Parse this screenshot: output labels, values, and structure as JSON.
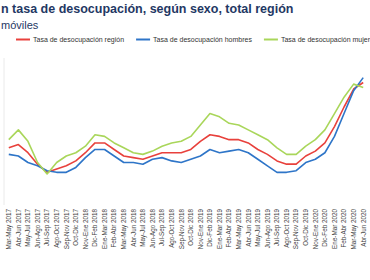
{
  "chart_data": {
    "type": "line",
    "title": "n tasa de desocupación, según sexo, total región",
    "subtitle": "móviles",
    "categories": [
      "Mar-May 2017",
      "Abr-Jun 2017",
      "May-Jul 2017",
      "Jun-Ago 2017",
      "Jul-Sep 2017",
      "Ago-Oct 2017",
      "Sep-Nov 2017",
      "Oct-Dic 2017",
      "Nov-Ene 2018",
      "Dic-Feb 2018",
      "Ene-Mar 2018",
      "Feb-Abr 2018",
      "Mar-May 2018",
      "Abr-Jun 2018",
      "May-Jul 2018",
      "Jun-Ago 2018",
      "Jul-Sep 2018",
      "Ago-Oct 2018",
      "Sep-Nov 2018",
      "Oct-Dic 2018",
      "Nov-Ene 2019",
      "Dic-Feb 2019",
      "Ene-Mar 2019",
      "Feb-Abr 2019",
      "Mar-May 2019",
      "Abr-Jun 2019",
      "May-Jul 2019",
      "Jun-Ago 2019",
      "Jul-Sep 2019",
      "Ago-Oct 2019",
      "Sep-Nov 2019",
      "Oct-Dic 2019",
      "Nov-Ene 2020",
      "Dic-Feb 2020",
      "Ene-Mar 2020",
      "Feb-Abr 2020",
      "Mar-May 2020",
      "Abr-Jun 2020"
    ],
    "series": [
      {
        "name": "Tasa de desocupación región",
        "color": "#e8413c",
        "values": [
          8.5,
          8.7,
          8.2,
          7.5,
          7.0,
          7.2,
          7.4,
          7.7,
          8.2,
          8.8,
          8.8,
          8.4,
          8.0,
          7.9,
          7.8,
          8.0,
          8.2,
          8.2,
          8.2,
          8.4,
          8.9,
          9.3,
          9.2,
          9.0,
          9.0,
          8.8,
          8.4,
          8.1,
          7.7,
          7.5,
          7.5,
          8.0,
          8.3,
          8.8,
          9.8,
          11.0,
          12.1,
          12.5
        ]
      },
      {
        "name": "Tasa de desocupación hombres",
        "color": "#2e75c8",
        "values": [
          8.1,
          8.0,
          7.6,
          7.4,
          7.1,
          7.0,
          7.0,
          7.3,
          7.9,
          8.4,
          8.4,
          8.0,
          7.6,
          7.6,
          7.5,
          7.8,
          7.9,
          7.7,
          7.6,
          7.8,
          8.0,
          8.4,
          8.2,
          8.3,
          8.4,
          8.2,
          7.8,
          7.4,
          7.0,
          7.0,
          7.1,
          7.6,
          7.8,
          8.2,
          9.2,
          10.6,
          12.0,
          12.8
        ]
      },
      {
        "name": "Tasa de desocupación mujeres",
        "color": "#a9d65a",
        "values": [
          9.0,
          9.6,
          8.9,
          7.6,
          6.9,
          7.6,
          8.0,
          8.2,
          8.6,
          9.3,
          9.2,
          8.8,
          8.5,
          8.2,
          8.1,
          8.3,
          8.6,
          8.8,
          8.9,
          9.2,
          9.9,
          10.6,
          10.4,
          10.0,
          9.9,
          9.6,
          9.3,
          9.0,
          8.5,
          8.1,
          8.1,
          8.6,
          9.0,
          9.6,
          10.6,
          11.6,
          12.4,
          12.2
        ]
      }
    ],
    "ylim": [
      5,
      14
    ],
    "yticks": [],
    "grid": false,
    "legend": "top",
    "tick_labels": "x"
  }
}
